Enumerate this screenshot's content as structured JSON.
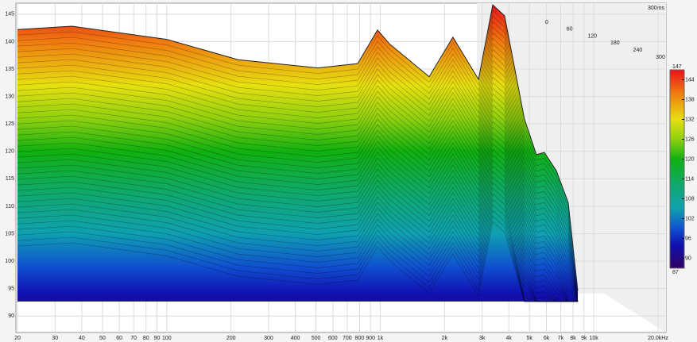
{
  "chart_data": {
    "type": "waterfall",
    "x": [
      20,
      36,
      100,
      216,
      510,
      784,
      971,
      1104,
      1695,
      2189,
      2601,
      2885,
      3363,
      3823,
      4733,
      5385,
      5866,
      6669,
      7587,
      8413
    ],
    "values": [
      142.2,
      142.8,
      140.4,
      136.7,
      135.2,
      136.0,
      142.1,
      139.6,
      133.6,
      140.8,
      136.0,
      133.1,
      146.7,
      144.7,
      125.9,
      119.4,
      119.8,
      116.5,
      110.7,
      94.6
    ],
    "xlim": [
      20,
      20000
    ],
    "log_x": true,
    "xticks": [
      20,
      30,
      40,
      50,
      60,
      70,
      80,
      90,
      100,
      200,
      300,
      400,
      500,
      600,
      700,
      800,
      900,
      {
        "value": 1000,
        "label": "1k"
      },
      {
        "value": 2000,
        "label": "2k"
      },
      {
        "value": 3000,
        "label": "3k"
      },
      {
        "value": 4000,
        "label": "4k"
      },
      {
        "value": 5000,
        "label": "5k"
      },
      {
        "value": 6000,
        "label": "6k"
      },
      {
        "value": 7000,
        "label": "7k"
      },
      {
        "value": 8000,
        "label": "8k"
      },
      {
        "value": 9000,
        "label": "9k"
      },
      {
        "value": 10000,
        "label": "10k"
      },
      {
        "value": 20000,
        "label": "20.0kHz"
      }
    ],
    "ylim": [
      87,
      147
    ],
    "yticks": [
      90,
      95,
      100,
      105,
      110,
      115,
      120,
      125,
      130,
      135,
      140,
      145
    ],
    "grid": true,
    "time_ticks": [
      0,
      60,
      120,
      180,
      240,
      300
    ],
    "time_label": "300ms",
    "colorbar": {
      "lim": [
        87,
        147
      ],
      "end_labels": [
        147,
        87
      ],
      "ticks": [
        144,
        138,
        132,
        126,
        120,
        114,
        108,
        102,
        96,
        90
      ],
      "stops": [
        {
          "value": 147,
          "color": "#e8101a"
        },
        {
          "value": 140,
          "color": "#f07a10"
        },
        {
          "value": 132,
          "color": "#e6e010"
        },
        {
          "value": 126,
          "color": "#90d010"
        },
        {
          "value": 120,
          "color": "#10b010"
        },
        {
          "value": 112,
          "color": "#10a870"
        },
        {
          "value": 105,
          "color": "#10a0b0"
        },
        {
          "value": 99,
          "color": "#1050d0"
        },
        {
          "value": 94,
          "color": "#1010b0"
        },
        {
          "value": 87,
          "color": "#300060"
        }
      ]
    }
  }
}
